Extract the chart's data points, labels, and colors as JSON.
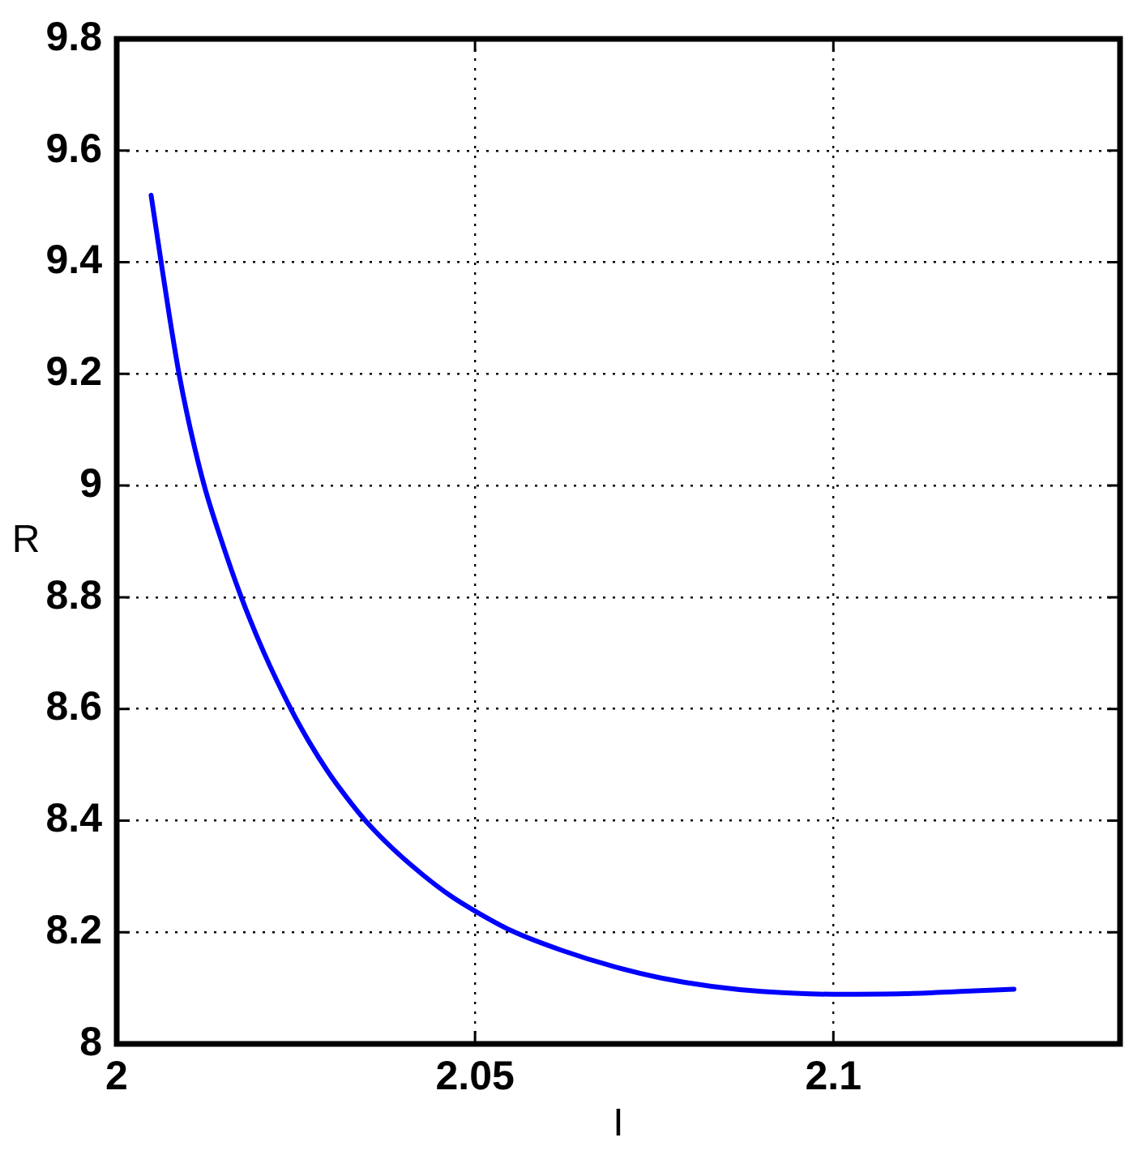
{
  "chart_data": {
    "type": "line",
    "xlabel": "I",
    "ylabel": "R",
    "x": [
      2.0048,
      2.0055,
      2.0062,
      2.0074,
      2.0087,
      2.0103,
      2.0123,
      2.0145,
      2.0173,
      2.0205,
      2.0243,
      2.0268,
      2.0295,
      2.032,
      2.0347,
      2.0385,
      2.0428,
      2.0465,
      2.05,
      2.0552,
      2.062,
      2.0695,
      2.076,
      2.083,
      2.09,
      2.1,
      2.11,
      2.1177,
      2.1252
    ],
    "series": [
      {
        "color": "#0000ff",
        "values": [
          9.52,
          9.46,
          9.4,
          9.3,
          9.2,
          9.1,
          8.996,
          8.906,
          8.803,
          8.702,
          8.6,
          8.542,
          8.487,
          8.443,
          8.4,
          8.35,
          8.302,
          8.266,
          8.238,
          8.202,
          8.168,
          8.138,
          8.118,
          8.103,
          8.094,
          8.089,
          8.09,
          8.094,
          8.098
        ]
      }
    ],
    "xlim": [
      2,
      2.14
    ],
    "ylim": [
      8,
      9.8
    ],
    "xticks": [
      2,
      2.05,
      2.1
    ],
    "yticks": [
      8,
      8.2,
      8.4,
      8.6,
      8.8,
      9,
      9.2,
      9.4,
      9.6,
      9.8
    ],
    "grid": true,
    "marker": "none",
    "line_style": "solid"
  }
}
